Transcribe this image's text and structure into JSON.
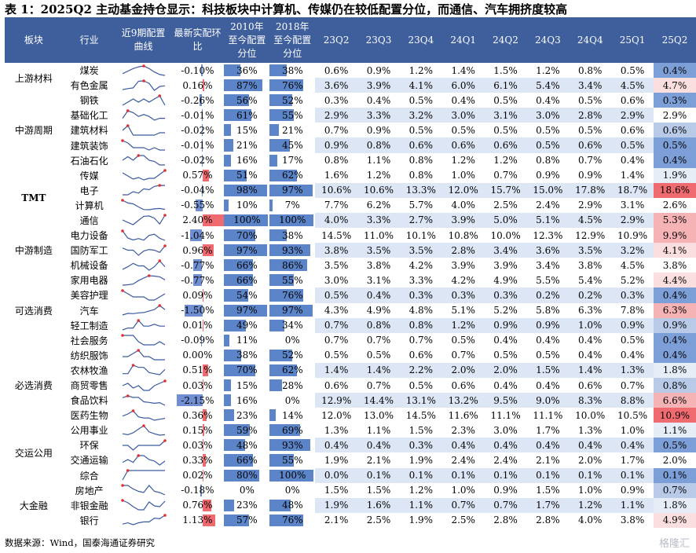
{
  "title": "表 1：2025Q2 主动基金持仓显示：科技板块中计算机、传媒仍在较低配置分位，而通信、汽车拥挤度较高",
  "headers": {
    "sector": "板块",
    "industry": "行业",
    "spark": "近9期配置曲线",
    "chg": "最新实配环比",
    "p2010": "2010年至今配置分位",
    "p2018": "2018年至今配置分位",
    "quarters": [
      "23Q2",
      "23Q3",
      "23Q4",
      "24Q1",
      "24Q2",
      "24Q3",
      "24Q4",
      "25Q1",
      "25Q2"
    ]
  },
  "colors": {
    "header_bg": "#3e5e9c",
    "bar_blue": "#5b85c8",
    "bar_red": "#ef6b70",
    "spark_line": "#3a5aa0",
    "spark_dot": "#e23030"
  },
  "groups": [
    {
      "sector": "上游材料",
      "rows": [
        {
          "ind": "煤炭",
          "chg": "-0.10%",
          "chg_v": -0.1,
          "p10": "36%",
          "p10_v": 36,
          "p18": "38%",
          "p18_v": 38,
          "q": [
            "0.6%",
            "0.9%",
            "1.2%",
            "1.4%",
            "1.5%",
            "1.2%",
            "0.8%",
            "0.5%",
            "0.4%"
          ]
        },
        {
          "ind": "有色金属",
          "chg": "0.16%",
          "chg_v": 0.16,
          "p10": "87%",
          "p10_v": 87,
          "p18": "76%",
          "p18_v": 76,
          "q": [
            "3.6%",
            "3.9%",
            "4.1%",
            "6.0%",
            "6.1%",
            "5.4%",
            "3.4%",
            "4.5%",
            "4.7%"
          ]
        }
      ]
    },
    {
      "sector": "中游周期",
      "rows": [
        {
          "ind": "钢铁",
          "chg": "-0.26%",
          "chg_v": -0.26,
          "p10": "56%",
          "p10_v": 56,
          "p18": "52%",
          "p18_v": 52,
          "q": [
            "0.3%",
            "0.4%",
            "0.5%",
            "0.4%",
            "0.5%",
            "0.4%",
            "0.5%",
            "0.6%",
            "0.3%"
          ]
        },
        {
          "ind": "基础化工",
          "chg": "-0.01%",
          "chg_v": -0.01,
          "p10": "61%",
          "p10_v": 61,
          "p18": "55%",
          "p18_v": 55,
          "q": [
            "2.9%",
            "3.3%",
            "3.2%",
            "3.0%",
            "3.1%",
            "3.0%",
            "2.8%",
            "2.9%",
            "2.9%"
          ]
        },
        {
          "ind": "建筑材料",
          "chg": "-0.02%",
          "chg_v": -0.02,
          "p10": "15%",
          "p10_v": 15,
          "p18": "21%",
          "p18_v": 21,
          "q": [
            "0.7%",
            "0.9%",
            "0.5%",
            "0.5%",
            "0.5%",
            "0.5%",
            "0.5%",
            "0.6%",
            "0.6%"
          ]
        },
        {
          "ind": "建筑装饰",
          "chg": "-0.01%",
          "chg_v": -0.01,
          "p10": "21%",
          "p10_v": 21,
          "p18": "45%",
          "p18_v": 45,
          "q": [
            "0.9%",
            "0.8%",
            "0.6%",
            "0.6%",
            "0.6%",
            "0.5%",
            "0.6%",
            "0.5%",
            "0.5%"
          ]
        },
        {
          "ind": "石油石化",
          "chg": "-0.02%",
          "chg_v": -0.02,
          "p10": "16%",
          "p10_v": 16,
          "p18": "17%",
          "p18_v": 17,
          "q": [
            "0.8%",
            "1.1%",
            "0.8%",
            "1.2%",
            "1.2%",
            "0.8%",
            "0.7%",
            "0.4%",
            "0.4%"
          ]
        }
      ]
    },
    {
      "sector": "TMT",
      "bold": true,
      "rows": [
        {
          "ind": "传媒",
          "chg": "0.57%",
          "chg_v": 0.57,
          "p10": "51%",
          "p10_v": 51,
          "p18": "62%",
          "p18_v": 62,
          "q": [
            "1.6%",
            "1.2%",
            "0.8%",
            "1.0%",
            "0.7%",
            "0.9%",
            "0.9%",
            "1.4%",
            "1.9%"
          ]
        },
        {
          "ind": "电子",
          "chg": "-0.04%",
          "chg_v": -0.04,
          "p10": "98%",
          "p10_v": 98,
          "p18": "97%",
          "p18_v": 97,
          "q": [
            "10.6%",
            "10.6%",
            "13.3%",
            "12.0%",
            "15.7%",
            "15.0%",
            "17.8%",
            "18.7%",
            "18.6%"
          ]
        },
        {
          "ind": "计算机",
          "chg": "-0.55%",
          "chg_v": -0.55,
          "p10": "10%",
          "p10_v": 10,
          "p18": "7%",
          "p18_v": 7,
          "q": [
            "7.7%",
            "6.2%",
            "5.7%",
            "4.0%",
            "2.5%",
            "2.4%",
            "2.9%",
            "3.1%",
            "2.6%"
          ]
        },
        {
          "ind": "通信",
          "chg": "2.40%",
          "chg_v": 2.4,
          "p10": "100%",
          "p10_v": 100,
          "p18": "100%",
          "p18_v": 100,
          "q": [
            "4.0%",
            "3.3%",
            "2.7%",
            "3.9%",
            "5.0%",
            "5.1%",
            "4.5%",
            "2.9%",
            "5.3%"
          ]
        }
      ]
    },
    {
      "sector": "中游制造",
      "rows": [
        {
          "ind": "电力设备",
          "chg": "-1.04%",
          "chg_v": -1.04,
          "p10": "70%",
          "p10_v": 70,
          "p18": "38%",
          "p18_v": 38,
          "q": [
            "14.5%",
            "11.0%",
            "10.1%",
            "10.8%",
            "10.0%",
            "12.3%",
            "12.9%",
            "10.9%",
            "9.9%"
          ]
        },
        {
          "ind": "国防军工",
          "chg": "0.96%",
          "chg_v": 0.96,
          "p10": "97%",
          "p10_v": 97,
          "p18": "93%",
          "p18_v": 93,
          "q": [
            "3.8%",
            "3.5%",
            "3.5%",
            "2.8%",
            "3.4%",
            "3.6%",
            "3.5%",
            "3.2%",
            "4.1%"
          ]
        },
        {
          "ind": "机械设备",
          "chg": "-0.77%",
          "chg_v": -0.77,
          "p10": "66%",
          "p10_v": 66,
          "p18": "86%",
          "p18_v": 86,
          "q": [
            "3.5%",
            "3.8%",
            "4.2%",
            "3.9%",
            "3.9%",
            "3.4%",
            "3.8%",
            "4.5%",
            "3.8%"
          ]
        }
      ]
    },
    {
      "sector": "可选消费",
      "rows": [
        {
          "ind": "家用电器",
          "chg": "-0.77%",
          "chg_v": -0.77,
          "p10": "66%",
          "p10_v": 66,
          "p18": "55%",
          "p18_v": 55,
          "q": [
            "3.0%",
            "3.1%",
            "3.3%",
            "4.2%",
            "4.9%",
            "5.5%",
            "5.4%",
            "5.2%",
            "4.4%"
          ]
        },
        {
          "ind": "美容护理",
          "chg": "0.09%",
          "chg_v": 0.09,
          "p10": "54%",
          "p10_v": 54,
          "p18": "76%",
          "p18_v": 76,
          "q": [
            "0.5%",
            "0.4%",
            "0.3%",
            "0.3%",
            "0.3%",
            "0.2%",
            "0.2%",
            "0.3%",
            "0.4%"
          ]
        },
        {
          "ind": "汽车",
          "chg": "-1.50%",
          "chg_v": -1.5,
          "p10": "97%",
          "p10_v": 97,
          "p18": "97%",
          "p18_v": 97,
          "q": [
            "4.3%",
            "4.9%",
            "4.8%",
            "5.1%",
            "5.2%",
            "5.8%",
            "6.3%",
            "7.8%",
            "6.3%"
          ]
        },
        {
          "ind": "轻工制造",
          "chg": "0.01%",
          "chg_v": 0.01,
          "p10": "49%",
          "p10_v": 49,
          "p18": "34%",
          "p18_v": 34,
          "q": [
            "0.7%",
            "0.8%",
            "0.8%",
            "1.2%",
            "0.9%",
            "0.9%",
            "1.0%",
            "0.9%",
            "0.9%"
          ]
        },
        {
          "ind": "社会服务",
          "chg": "-0.09%",
          "chg_v": -0.09,
          "p10": "11%",
          "p10_v": 11,
          "p18": "0%",
          "p18_v": 0,
          "q": [
            "0.7%",
            "0.7%",
            "0.7%",
            "0.5%",
            "0.4%",
            "0.4%",
            "0.4%",
            "0.5%",
            "0.4%"
          ]
        }
      ]
    },
    {
      "sector": "必选消费",
      "rows": [
        {
          "ind": "纺织服饰",
          "chg": "0.00%",
          "chg_v": 0.0,
          "p10": "38%",
          "p10_v": 38,
          "p18": "52%",
          "p18_v": 52,
          "q": [
            "0.5%",
            "0.5%",
            "0.6%",
            "0.7%",
            "0.5%",
            "0.5%",
            "0.4%",
            "0.4%",
            "0.4%"
          ]
        },
        {
          "ind": "农林牧渔",
          "chg": "0.51%",
          "chg_v": 0.51,
          "p10": "70%",
          "p10_v": 70,
          "p18": "62%",
          "p18_v": 62,
          "q": [
            "1.4%",
            "1.4%",
            "2.2%",
            "2.0%",
            "2.0%",
            "1.5%",
            "1.4%",
            "1.3%",
            "1.8%"
          ]
        },
        {
          "ind": "商贸零售",
          "chg": "0.03%",
          "chg_v": 0.03,
          "p10": "15%",
          "p10_v": 15,
          "p18": "28%",
          "p18_v": 28,
          "q": [
            "0.6%",
            "0.7%",
            "0.5%",
            "0.6%",
            "0.4%",
            "0.4%",
            "0.6%",
            "0.7%",
            "0.8%"
          ]
        },
        {
          "ind": "食品饮料",
          "chg": "-2.15%",
          "chg_v": -2.15,
          "p10": "16%",
          "p10_v": 16,
          "p18": "0%",
          "p18_v": 0,
          "q": [
            "12.9%",
            "14.4%",
            "13.1%",
            "13.2%",
            "9.5%",
            "9.0%",
            "8.3%",
            "8.8%",
            "6.6%"
          ]
        },
        {
          "ind": "医药生物",
          "chg": "0.36%",
          "chg_v": 0.36,
          "p10": "23%",
          "p10_v": 23,
          "p18": "14%",
          "p18_v": 14,
          "q": [
            "12.0%",
            "13.0%",
            "14.5%",
            "11.6%",
            "11.1%",
            "11.1%",
            "10.0%",
            "10.5%",
            "10.9%"
          ]
        }
      ]
    },
    {
      "sector": "交运公用",
      "rows": [
        {
          "ind": "公用事业",
          "chg": "0.15%",
          "chg_v": 0.15,
          "p10": "59%",
          "p10_v": 59,
          "p18": "69%",
          "p18_v": 69,
          "q": [
            "1.3%",
            "1.1%",
            "1.5%",
            "2.3%",
            "3.0%",
            "1.7%",
            "1.3%",
            "1.0%",
            "1.1%"
          ]
        },
        {
          "ind": "环保",
          "chg": "0.03%",
          "chg_v": 0.03,
          "p10": "48%",
          "p10_v": 48,
          "p18": "93%",
          "p18_v": 93,
          "q": [
            "0.4%",
            "0.4%",
            "0.3%",
            "0.4%",
            "0.4%",
            "0.4%",
            "0.4%",
            "0.4%",
            "0.5%"
          ]
        },
        {
          "ind": "交通运输",
          "chg": "0.33%",
          "chg_v": 0.33,
          "p10": "66%",
          "p10_v": 66,
          "p18": "55%",
          "p18_v": 55,
          "q": [
            "1.9%",
            "2.1%",
            "1.9%",
            "2.4%",
            "2.4%",
            "2.1%",
            "2.0%",
            "1.7%",
            "2.0%"
          ]
        },
        {
          "ind": "综合",
          "chg": "0.02%",
          "chg_v": 0.02,
          "p10": "80%",
          "p10_v": 80,
          "p18": "100%",
          "p18_v": 100,
          "q": [
            "0.0%",
            "0.1%",
            "0.1%",
            "0.1%",
            "0.1%",
            "0.1%",
            "0.1%",
            "0.1%",
            "0.1%"
          ]
        }
      ]
    },
    {
      "sector": "大金融",
      "rows": [
        {
          "ind": "房地产",
          "chg": "-0.18%",
          "chg_v": -0.18,
          "p10": "0%",
          "p10_v": 0,
          "p18": "0%",
          "p18_v": 0,
          "q": [
            "1.5%",
            "1.5%",
            "1.2%",
            "1.0%",
            "0.9%",
            "1.5%",
            "1.0%",
            "0.9%",
            "0.7%"
          ]
        },
        {
          "ind": "非银金融",
          "chg": "0.76%",
          "chg_v": 0.76,
          "p10": "23%",
          "p10_v": 23,
          "p18": "48%",
          "p18_v": 48,
          "q": [
            "1.9%",
            "1.6%",
            "1.1%",
            "0.7%",
            "0.7%",
            "1.7%",
            "1.2%",
            "1.1%",
            "1.8%"
          ]
        },
        {
          "ind": "银行",
          "chg": "1.13%",
          "chg_v": 1.13,
          "p10": "57%",
          "p10_v": 57,
          "p18": "76%",
          "p18_v": 76,
          "q": [
            "2.1%",
            "2.5%",
            "1.9%",
            "2.5%",
            "2.8%",
            "2.8%",
            "4.0%",
            "3.8%",
            "4.9%"
          ]
        }
      ]
    }
  ],
  "note": "数据来源：Wind，国泰海通证券研究",
  "watermark": "格隆汇"
}
